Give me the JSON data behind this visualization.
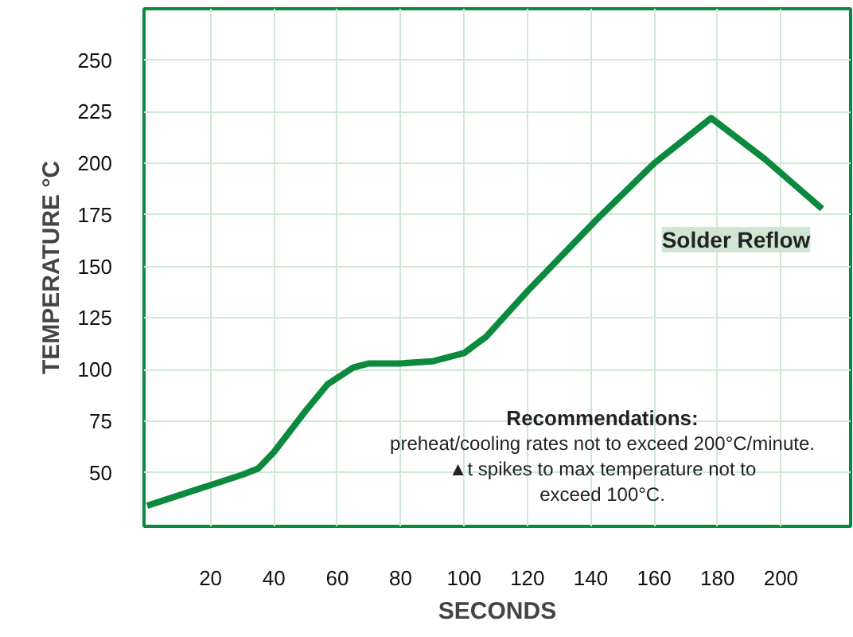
{
  "chart_data": {
    "type": "line",
    "xlabel": "SECONDS",
    "ylabel": "TEMPERATURE °C",
    "x": [
      0,
      10,
      20,
      30,
      35,
      40,
      50,
      57,
      65,
      70,
      75,
      80,
      90,
      100,
      107,
      120,
      142,
      160,
      178,
      195,
      213
    ],
    "series": [
      {
        "color": "#0b8a3e",
        "values": [
          34,
          39,
          44,
          49,
          52,
          60,
          80,
          93,
          101,
          103,
          103,
          103,
          104,
          108,
          116,
          138,
          173,
          200,
          222,
          202,
          178
        ]
      }
    ],
    "xlim": [
      -1,
      222
    ],
    "xticks": [
      20,
      40,
      60,
      80,
      100,
      120,
      140,
      160,
      180,
      200
    ],
    "ylim": [
      24,
      275
    ],
    "yticks": [
      50,
      75,
      100,
      125,
      150,
      175,
      200,
      225,
      250
    ],
    "grid": true,
    "line_style": "solid",
    "marker": "none",
    "annotations": [
      "Solder Reflow",
      "Recommendations:",
      "preheat/cooling rates not to exceed 200°C/minute.",
      "▲t spikes to max temperature not to",
      "exceed 100°C."
    ]
  }
}
